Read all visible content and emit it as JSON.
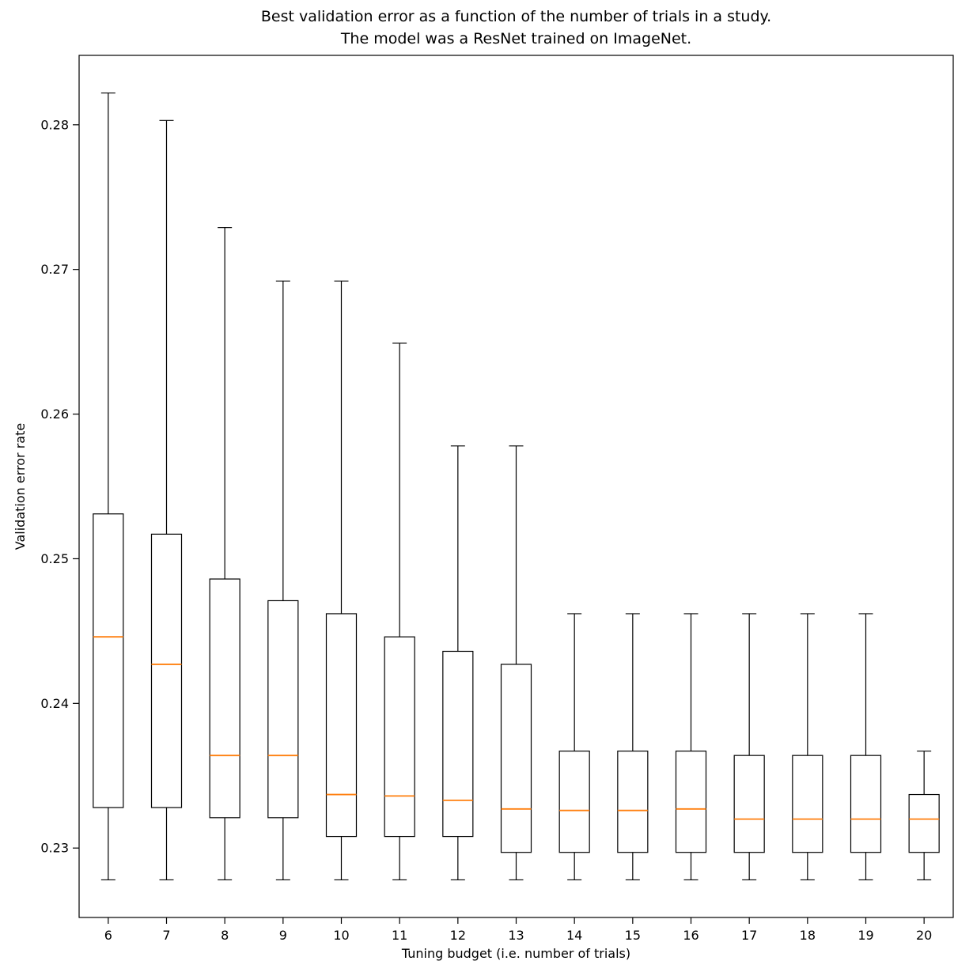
{
  "chart_data": {
    "type": "boxplot",
    "title": "Best validation error as a function of the number of trials in a study. The model was a ResNet trained on ImageNet.",
    "title_line1": "Best validation error as a function of the number of trials in a study.",
    "title_line2": "The model was a ResNet trained on ImageNet.",
    "xlabel": "Tuning budget (i.e. number of trials)",
    "ylabel": "Validation error rate",
    "categories": [
      "6",
      "7",
      "8",
      "9",
      "10",
      "11",
      "12",
      "13",
      "14",
      "15",
      "16",
      "17",
      "18",
      "19",
      "20"
    ],
    "y_ticks": [
      0.23,
      0.24,
      0.25,
      0.26,
      0.27,
      0.28
    ],
    "ylim": [
      0.2252,
      0.2848
    ],
    "grid": false,
    "legend": "none",
    "box_edge_color": "#000000",
    "median_color": "#ff7f0e",
    "boxes": [
      {
        "label": "6",
        "whisker_low": 0.2278,
        "q1": 0.2328,
        "median": 0.2446,
        "q3": 0.2531,
        "whisker_high": 0.2822
      },
      {
        "label": "7",
        "whisker_low": 0.2278,
        "q1": 0.2328,
        "median": 0.2427,
        "q3": 0.2517,
        "whisker_high": 0.2803
      },
      {
        "label": "8",
        "whisker_low": 0.2278,
        "q1": 0.2321,
        "median": 0.2364,
        "q3": 0.2486,
        "whisker_high": 0.2729
      },
      {
        "label": "9",
        "whisker_low": 0.2278,
        "q1": 0.2321,
        "median": 0.2364,
        "q3": 0.2471,
        "whisker_high": 0.2692
      },
      {
        "label": "10",
        "whisker_low": 0.2278,
        "q1": 0.2308,
        "median": 0.2337,
        "q3": 0.2462,
        "whisker_high": 0.2692
      },
      {
        "label": "11",
        "whisker_low": 0.2278,
        "q1": 0.2308,
        "median": 0.2336,
        "q3": 0.2446,
        "whisker_high": 0.2649
      },
      {
        "label": "12",
        "whisker_low": 0.2278,
        "q1": 0.2308,
        "median": 0.2333,
        "q3": 0.2436,
        "whisker_high": 0.2578
      },
      {
        "label": "13",
        "whisker_low": 0.2278,
        "q1": 0.2297,
        "median": 0.2327,
        "q3": 0.2427,
        "whisker_high": 0.2578
      },
      {
        "label": "14",
        "whisker_low": 0.2278,
        "q1": 0.2297,
        "median": 0.2326,
        "q3": 0.2367,
        "whisker_high": 0.2462
      },
      {
        "label": "15",
        "whisker_low": 0.2278,
        "q1": 0.2297,
        "median": 0.2326,
        "q3": 0.2367,
        "whisker_high": 0.2462
      },
      {
        "label": "16",
        "whisker_low": 0.2278,
        "q1": 0.2297,
        "median": 0.2327,
        "q3": 0.2367,
        "whisker_high": 0.2462
      },
      {
        "label": "17",
        "whisker_low": 0.2278,
        "q1": 0.2297,
        "median": 0.232,
        "q3": 0.2364,
        "whisker_high": 0.2462
      },
      {
        "label": "18",
        "whisker_low": 0.2278,
        "q1": 0.2297,
        "median": 0.232,
        "q3": 0.2364,
        "whisker_high": 0.2462
      },
      {
        "label": "19",
        "whisker_low": 0.2278,
        "q1": 0.2297,
        "median": 0.232,
        "q3": 0.2364,
        "whisker_high": 0.2462
      },
      {
        "label": "20",
        "whisker_low": 0.2278,
        "q1": 0.2297,
        "median": 0.232,
        "q3": 0.2337,
        "whisker_high": 0.2367
      }
    ]
  }
}
